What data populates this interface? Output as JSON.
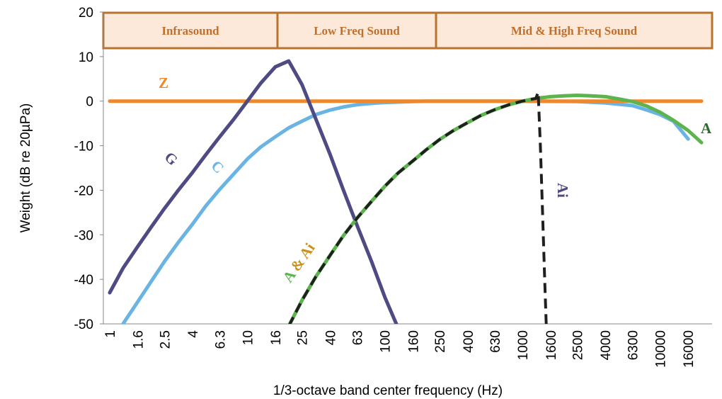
{
  "chart_data": {
    "type": "line",
    "xlabel": "1/3-octave band center frequency (Hz)",
    "ylabel": "Weight (dB re 20µPa)",
    "ylim": [
      -50,
      20
    ],
    "yticks": [
      20,
      10,
      0,
      -10,
      -20,
      -30,
      -40,
      -50
    ],
    "x_scale": "log (1/3-octave bands)",
    "xticks": [
      "1",
      "1.6",
      "2.5",
      "4",
      "6.3",
      "10",
      "16",
      "25",
      "40",
      "63",
      "100",
      "160",
      "250",
      "400",
      "630",
      "1000",
      "1600",
      "2500",
      "4000",
      "6300",
      "10000",
      "16000"
    ],
    "grid": false,
    "bands": [
      {
        "label": "Infrasound",
        "from_hz": 1,
        "to_hz": 20
      },
      {
        "label": "Low Freq Sound",
        "from_hz": 20,
        "to_hz": 200
      },
      {
        "label": "Mid & High Freq Sound",
        "from_hz": 200,
        "to_hz": 20000
      }
    ],
    "series": [
      {
        "name": "Z",
        "color": "#f0872a",
        "x": [
          1,
          20000
        ],
        "y": [
          0,
          0
        ]
      },
      {
        "name": "G",
        "color": "#4e4a83",
        "x": [
          1,
          1.25,
          1.6,
          2,
          2.5,
          3.15,
          4,
          5,
          6.3,
          8,
          10,
          12.5,
          16,
          20,
          25,
          31.5,
          40,
          50,
          63,
          80,
          100,
          125
        ],
        "y": [
          -43,
          -37.5,
          -32.6,
          -28.3,
          -24.1,
          -20,
          -16,
          -12,
          -8,
          -4,
          0,
          4,
          7.7,
          9,
          3.7,
          -4,
          -12,
          -20,
          -28,
          -36,
          -44,
          -51
        ]
      },
      {
        "name": "C",
        "color": "#6ab4e4",
        "x": [
          1.25,
          1.6,
          2,
          2.5,
          3.15,
          4,
          5,
          6.3,
          8,
          10,
          12.5,
          16,
          20,
          25,
          31.5,
          40,
          50,
          63,
          80,
          100,
          125,
          160,
          200,
          1000,
          2500,
          4000,
          6300,
          8000,
          10000,
          12500,
          16000
        ],
        "y": [
          -50,
          -45,
          -40.5,
          -36,
          -31.7,
          -27.6,
          -23.5,
          -19.8,
          -16.3,
          -13,
          -10.3,
          -8,
          -6,
          -4.5,
          -3,
          -2,
          -1.3,
          -0.8,
          -0.5,
          -0.3,
          -0.2,
          -0.1,
          0,
          0,
          -0.1,
          -0.4,
          -1.0,
          -2.0,
          -3.0,
          -4.5,
          -8.5
        ]
      },
      {
        "name": "A",
        "color": "#5db44e",
        "x": [
          20,
          25,
          31.5,
          40,
          50,
          63,
          80,
          100,
          125,
          160,
          200,
          250,
          315,
          400,
          500,
          630,
          800,
          1000,
          1250,
          1600,
          2000,
          2500,
          3150,
          4000,
          5000,
          6300,
          8000,
          10000,
          12500,
          16000,
          20000
        ],
        "y": [
          -50.5,
          -44.7,
          -39.4,
          -34.6,
          -30.2,
          -26.2,
          -22.5,
          -19.1,
          -16.1,
          -13.4,
          -10.9,
          -8.6,
          -6.6,
          -4.8,
          -3.2,
          -1.9,
          -0.8,
          0,
          0.6,
          1.0,
          1.2,
          1.3,
          1.2,
          1.0,
          0.5,
          -0.1,
          -1.1,
          -2.5,
          -4.3,
          -6.6,
          -9.3
        ]
      },
      {
        "name": "Ai",
        "color": "#1f1f1f",
        "dashed": true,
        "x": [
          20,
          25,
          31.5,
          40,
          50,
          63,
          80,
          100,
          125,
          160,
          200,
          250,
          315,
          400,
          500,
          630,
          800,
          1000,
          1250,
          1300,
          1350,
          1400,
          1450,
          1500
        ],
        "y": [
          -50.5,
          -44.7,
          -39.4,
          -34.6,
          -30.2,
          -26.2,
          -22.5,
          -19.1,
          -16.1,
          -13.4,
          -10.9,
          -8.6,
          -6.6,
          -4.8,
          -3.2,
          -1.9,
          -0.8,
          0,
          0.6,
          2,
          -10,
          -25,
          -40,
          -53
        ]
      }
    ],
    "annotations": {
      "z": "Z",
      "g": "G",
      "c": "C",
      "a": "A",
      "ai": "Ai",
      "a_and_ai": "A & Ai"
    },
    "colors": {
      "band_fill": "#fde9d9",
      "band_border": "#b8732c",
      "band_text": "#c0702c",
      "label_g": "#4e4a83",
      "label_c": "#6ab4e4",
      "label_a": "#2e6b2a",
      "label_ai": "#4e4a83",
      "label_amp": "#c9911b"
    }
  }
}
